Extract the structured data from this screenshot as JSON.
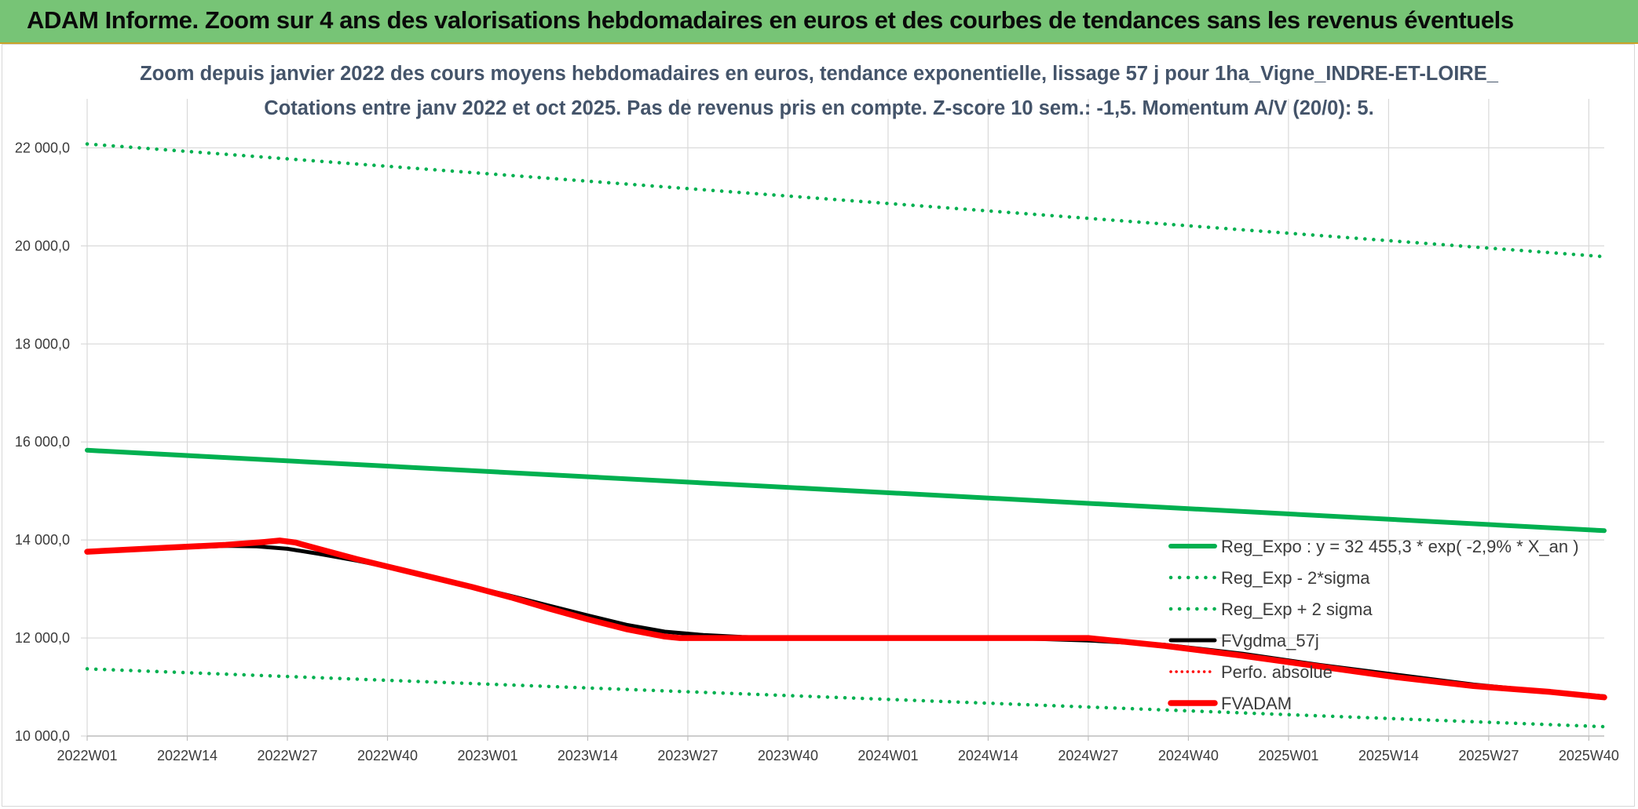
{
  "banner": {
    "title": "ADAM Informe. Zoom sur 4 ans des valorisations hebdomadaires en euros et des courbes de tendances sans les revenus éventuels"
  },
  "colors": {
    "banner_bg": "#77c476",
    "green": "#00b050",
    "red": "#ff0000",
    "black": "#000000",
    "grid": "#d9d9d9"
  },
  "chart_data": {
    "type": "line",
    "title": "Zoom depuis janvier 2022 des cours moyens hebdomadaires en euros, tendance exponentielle, lissage 57 j pour 1ha_Vigne_INDRE-ET-LOIRE_",
    "subtitle": "Cotations entre janv 2022 et oct 2025. Pas de revenus pris en compte. Z-score 10 sem.: -1,5. Momentum A/V (20/0): 5.",
    "xlabel": "",
    "ylabel": "",
    "x_range": [
      0,
      197
    ],
    "ylim": [
      10000,
      23000
    ],
    "y_ticks": [
      10000,
      12000,
      14000,
      16000,
      18000,
      20000,
      22000
    ],
    "y_tick_labels": [
      "10 000,0",
      "12 000,0",
      "14 000,0",
      "16 000,0",
      "18 000,0",
      "20 000,0",
      "22 000,0"
    ],
    "x_ticks": [
      0,
      13,
      26,
      39,
      52,
      65,
      78,
      91,
      104,
      117,
      130,
      143,
      156,
      169,
      182,
      195
    ],
    "x_tick_labels": [
      "2022W01",
      "2022W14",
      "2022W27",
      "2022W40",
      "2023W01",
      "2023W14",
      "2023W27",
      "2023W40",
      "2024W01",
      "2024W14",
      "2024W27",
      "2024W40",
      "2025W01",
      "2025W14",
      "2025W27",
      "2025W40"
    ],
    "legend_position": "bottom-right",
    "series": [
      {
        "name": "Reg_Expo : y = 32 455,3 * exp( -2,9% *  X_an )",
        "style": "green-solid",
        "x": [
          0,
          197
        ],
        "values": [
          15830,
          14190
        ]
      },
      {
        "name": "Reg_Exp - 2*sigma",
        "style": "green-dotted",
        "x": [
          0,
          197
        ],
        "values": [
          11370,
          10190
        ]
      },
      {
        "name": "Reg_Exp + 2 sigma",
        "style": "green-dotted",
        "x": [
          0,
          197
        ],
        "values": [
          22080,
          19780
        ]
      },
      {
        "name": "FVgdma_57j",
        "style": "black-solid",
        "x": [
          0,
          10,
          18,
          22,
          26,
          30,
          35,
          40,
          45,
          50,
          55,
          60,
          65,
          70,
          75,
          80,
          85,
          90,
          100,
          110,
          120,
          130,
          140,
          150,
          160,
          170,
          180,
          190,
          197
        ],
        "values": [
          13760,
          13830,
          13880,
          13870,
          13820,
          13720,
          13580,
          13420,
          13240,
          13050,
          12860,
          12660,
          12460,
          12270,
          12130,
          12060,
          12020,
          12000,
          12000,
          12000,
          12000,
          11950,
          11860,
          11680,
          11450,
          11250,
          11050,
          10900,
          10810
        ]
      },
      {
        "name": "Perfo. absolue",
        "style": "red-dotted",
        "x": [],
        "values": []
      },
      {
        "name": "FVADAM",
        "style": "red-solid",
        "x": [
          0,
          10,
          18,
          23,
          25,
          27,
          30,
          35,
          40,
          45,
          50,
          55,
          60,
          65,
          70,
          75,
          77,
          80,
          90,
          100,
          110,
          120,
          130,
          140,
          150,
          160,
          170,
          180,
          190,
          197
        ],
        "values": [
          13760,
          13840,
          13900,
          13960,
          13990,
          13950,
          13820,
          13610,
          13420,
          13230,
          13040,
          12830,
          12600,
          12380,
          12180,
          12030,
          12000,
          12000,
          12000,
          12000,
          12000,
          12000,
          12000,
          11840,
          11640,
          11420,
          11200,
          11020,
          10900,
          10790
        ]
      }
    ]
  }
}
